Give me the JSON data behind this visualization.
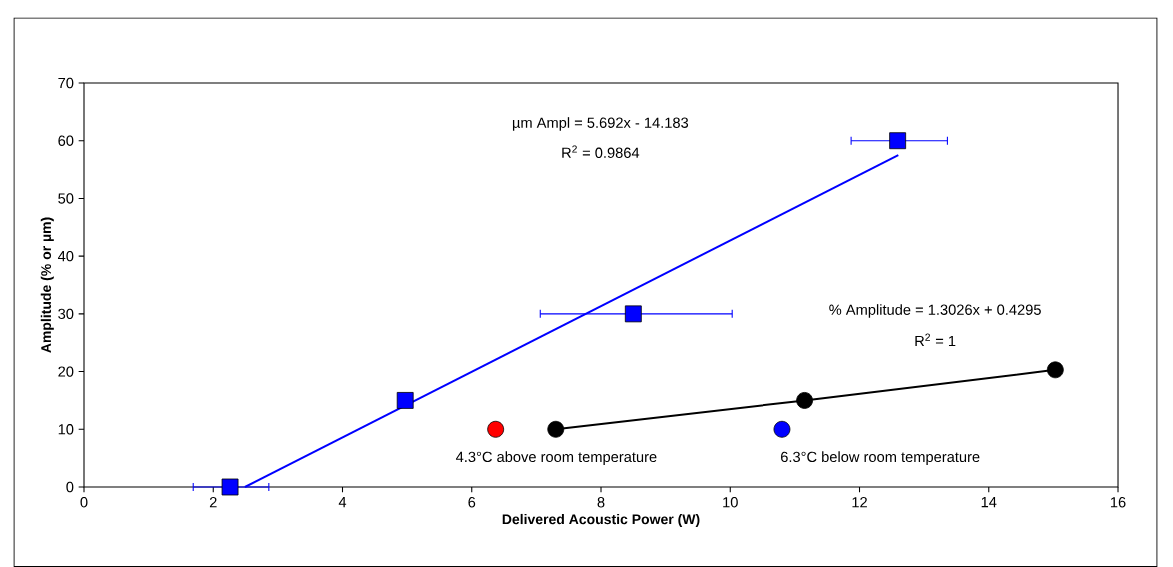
{
  "chart_data": {
    "type": "scatter",
    "xlabel": "Delivered Acoustic Power (W)",
    "ylabel": "Amplitude (% or µm)",
    "xlim": [
      0,
      16
    ],
    "xticks": [
      0,
      2,
      4,
      6,
      8,
      10,
      12,
      14,
      16
    ],
    "ylim": [
      0,
      70
    ],
    "yticks": [
      0,
      10,
      20,
      30,
      40,
      50,
      60,
      70
    ],
    "grid": false,
    "series": [
      {
        "color": "#0000ff",
        "marker": "square",
        "x": [
          2.26,
          4.97,
          8.5,
          12.59
        ],
        "values": [
          0,
          15,
          30,
          60
        ],
        "xerrors": [
          [
            1.69,
            2.86
          ],
          null,
          [
            7.06,
            10.03
          ],
          [
            11.87,
            13.36
          ]
        ]
      },
      {
        "type": "line",
        "color": "#0000ff",
        "marker": "none",
        "x": [
          2.49,
          12.6
        ],
        "values": [
          0,
          57.5
        ]
      },
      {
        "type": "line",
        "color": "#000000",
        "marker": "circle",
        "x": [
          7.3,
          11.15,
          15.03
        ],
        "values": [
          10,
          15,
          20.3
        ]
      },
      {
        "color": "#ff0000",
        "marker": "circle",
        "x": [
          6.37
        ],
        "values": [
          10
        ]
      },
      {
        "color": "#0000ff",
        "marker": "circle",
        "x": [
          10.8
        ],
        "values": [
          10
        ]
      }
    ],
    "annotations": [
      "µm Ampl = 5.692x - 14.183",
      "R$^{2}$ = 0.9864",
      "% Amplitude = 1.3026x + 0.4295",
      "R$^{2}$ = 1",
      "4.3°C above room temperature",
      "6.3°C below room temperature"
    ]
  }
}
